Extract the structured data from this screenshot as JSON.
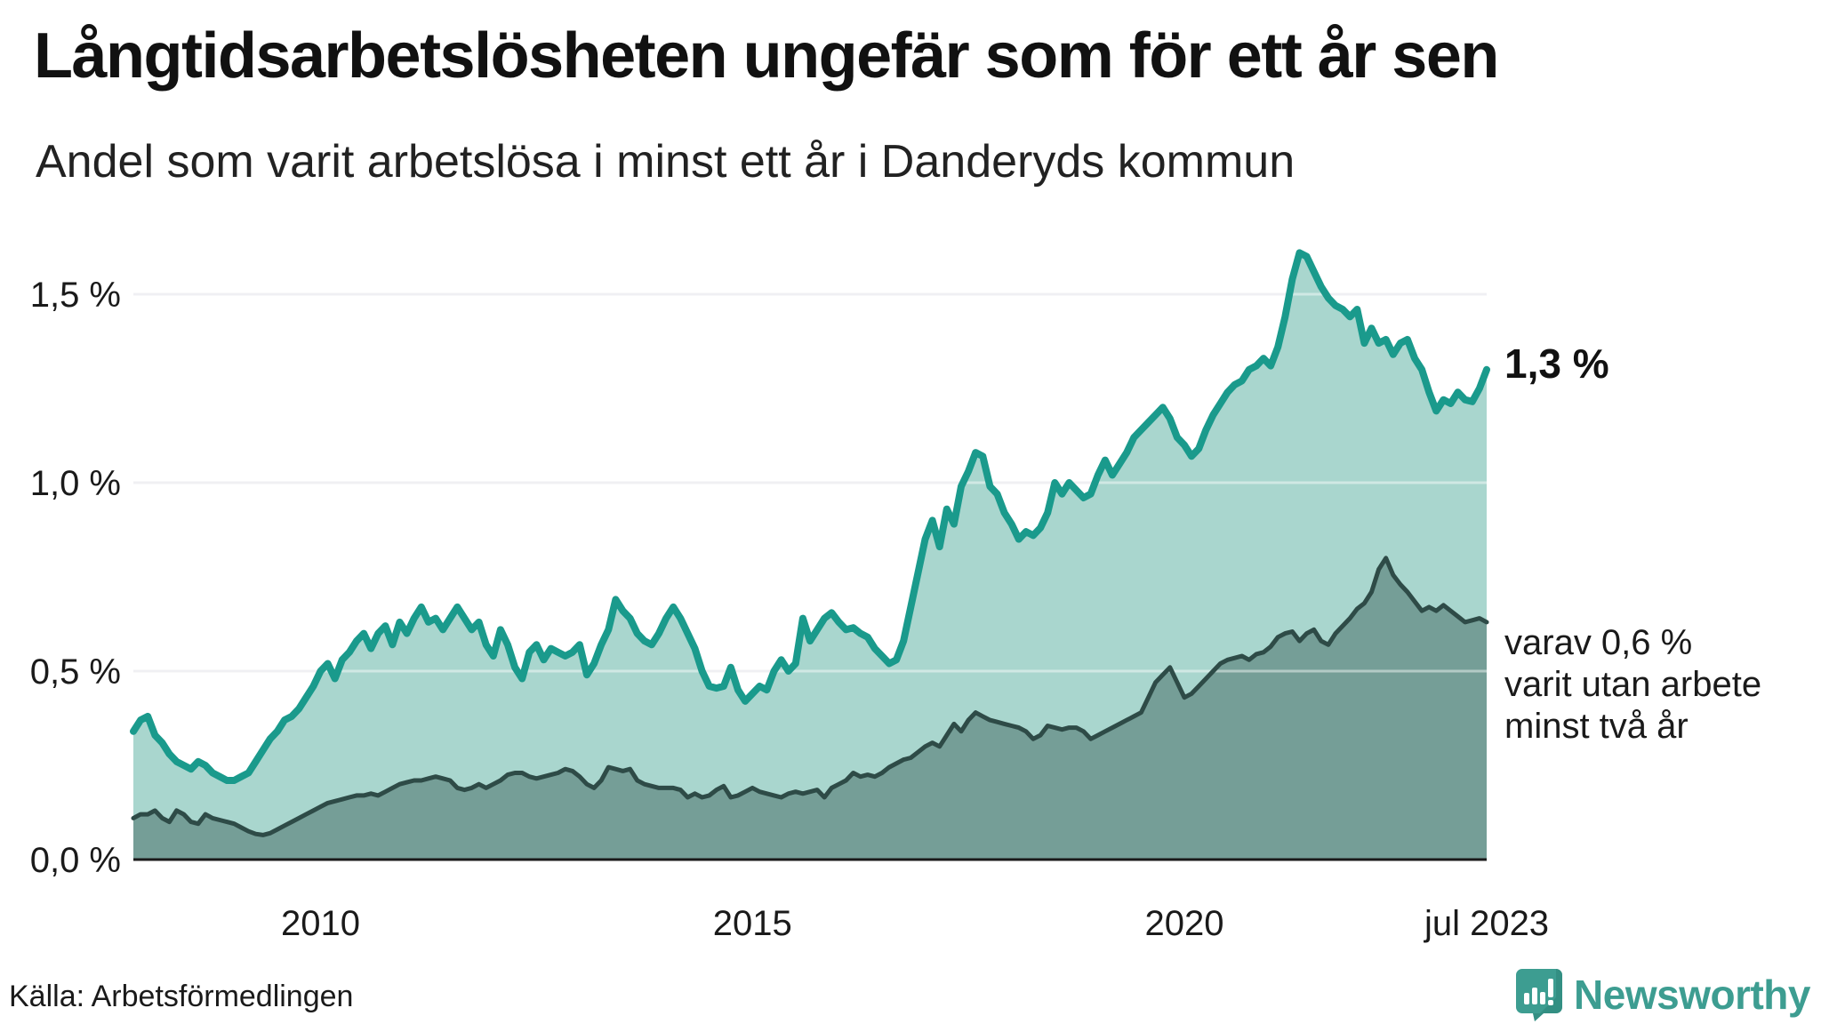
{
  "header": {
    "title": "Långtidsarbetslösheten ungefär som för ett år sen",
    "subtitle": "Andel som varit arbetslösa i minst ett år i Danderyds kommun"
  },
  "annotations": {
    "end_label_total": "1,3 %",
    "two_years_lines": [
      "varav 0,6 %",
      "varit utan arbete",
      "minst två år"
    ]
  },
  "footer": {
    "source": "Källa: Arbetsförmedlingen",
    "logo_text": "Newsworthy"
  },
  "colors": {
    "line_total": "#1a9a8c",
    "fill_total": "#a9d6ce",
    "line_two_years": "#2e4b47",
    "fill_two_years": "#759e97",
    "grid": "#e4e4e9",
    "grid_overlay": "rgba(255,255,255,0.45)",
    "axis": "#1a1a1a",
    "tick_text": "#1a1a1a",
    "logo_teal": "#3d9d91",
    "logo_teal_dark": "#2b8478"
  },
  "chart_data": {
    "type": "area",
    "title": "Andel som varit arbetslösa i minst ett år i Danderyds kommun",
    "x_start": "2007-11",
    "x_end": "2023-07",
    "frequency": "monthly",
    "ylim": [
      0,
      1.7
    ],
    "grid": "horizontal",
    "legend_position": "end-of-line-annotations",
    "y_ticks": [
      {
        "label": "0,0 %",
        "value": 0.0
      },
      {
        "label": "0,5 %",
        "value": 0.5
      },
      {
        "label": "1,0 %",
        "value": 1.0
      },
      {
        "label": "1,5 %",
        "value": 1.5
      }
    ],
    "x_ticks": [
      {
        "label": "2010",
        "month_index": 26
      },
      {
        "label": "2015",
        "month_index": 86
      },
      {
        "label": "2020",
        "month_index": 146
      },
      {
        "label": "jul 2023",
        "month_index": 188
      }
    ],
    "series": [
      {
        "name": "Arbetslösa minst ett år",
        "end_value_label": "1,3 %",
        "values": [
          0.34,
          0.37,
          0.38,
          0.33,
          0.31,
          0.28,
          0.26,
          0.25,
          0.24,
          0.26,
          0.25,
          0.23,
          0.22,
          0.21,
          0.21,
          0.22,
          0.23,
          0.26,
          0.29,
          0.32,
          0.34,
          0.37,
          0.38,
          0.4,
          0.43,
          0.46,
          0.5,
          0.52,
          0.48,
          0.53,
          0.55,
          0.58,
          0.6,
          0.56,
          0.6,
          0.62,
          0.57,
          0.63,
          0.6,
          0.64,
          0.67,
          0.63,
          0.64,
          0.61,
          0.64,
          0.67,
          0.64,
          0.61,
          0.63,
          0.57,
          0.54,
          0.61,
          0.57,
          0.51,
          0.48,
          0.55,
          0.57,
          0.53,
          0.56,
          0.55,
          0.54,
          0.55,
          0.57,
          0.49,
          0.52,
          0.57,
          0.61,
          0.69,
          0.66,
          0.64,
          0.6,
          0.58,
          0.57,
          0.6,
          0.64,
          0.67,
          0.64,
          0.6,
          0.56,
          0.5,
          0.46,
          0.455,
          0.46,
          0.51,
          0.45,
          0.42,
          0.44,
          0.46,
          0.45,
          0.5,
          0.53,
          0.5,
          0.52,
          0.64,
          0.58,
          0.61,
          0.64,
          0.655,
          0.63,
          0.61,
          0.615,
          0.6,
          0.59,
          0.56,
          0.54,
          0.52,
          0.53,
          0.58,
          0.67,
          0.76,
          0.85,
          0.9,
          0.83,
          0.93,
          0.89,
          0.99,
          1.03,
          1.08,
          1.07,
          0.99,
          0.97,
          0.92,
          0.89,
          0.85,
          0.87,
          0.86,
          0.88,
          0.92,
          1.0,
          0.97,
          1.0,
          0.98,
          0.96,
          0.97,
          1.02,
          1.06,
          1.02,
          1.05,
          1.08,
          1.12,
          1.14,
          1.16,
          1.18,
          1.2,
          1.17,
          1.12,
          1.1,
          1.07,
          1.09,
          1.14,
          1.18,
          1.21,
          1.24,
          1.26,
          1.27,
          1.3,
          1.31,
          1.33,
          1.31,
          1.36,
          1.44,
          1.54,
          1.61,
          1.6,
          1.56,
          1.52,
          1.49,
          1.47,
          1.46,
          1.44,
          1.46,
          1.37,
          1.41,
          1.37,
          1.38,
          1.34,
          1.37,
          1.38,
          1.33,
          1.3,
          1.24,
          1.19,
          1.22,
          1.21,
          1.24,
          1.22,
          1.215,
          1.25,
          1.3
        ]
      },
      {
        "name": "varav utan arbete minst två år",
        "end_value_label": "0,6 %",
        "values": [
          0.11,
          0.12,
          0.12,
          0.13,
          0.11,
          0.1,
          0.13,
          0.12,
          0.1,
          0.095,
          0.12,
          0.11,
          0.105,
          0.1,
          0.095,
          0.085,
          0.075,
          0.068,
          0.065,
          0.07,
          0.08,
          0.09,
          0.1,
          0.11,
          0.12,
          0.13,
          0.14,
          0.15,
          0.155,
          0.16,
          0.165,
          0.17,
          0.17,
          0.175,
          0.17,
          0.18,
          0.19,
          0.2,
          0.205,
          0.21,
          0.21,
          0.215,
          0.22,
          0.215,
          0.21,
          0.19,
          0.185,
          0.19,
          0.2,
          0.19,
          0.2,
          0.21,
          0.225,
          0.23,
          0.23,
          0.22,
          0.215,
          0.22,
          0.225,
          0.23,
          0.24,
          0.235,
          0.22,
          0.2,
          0.19,
          0.21,
          0.245,
          0.24,
          0.235,
          0.24,
          0.21,
          0.2,
          0.195,
          0.19,
          0.19,
          0.19,
          0.185,
          0.165,
          0.175,
          0.165,
          0.17,
          0.185,
          0.195,
          0.165,
          0.17,
          0.18,
          0.19,
          0.18,
          0.175,
          0.17,
          0.165,
          0.175,
          0.18,
          0.175,
          0.18,
          0.185,
          0.165,
          0.19,
          0.2,
          0.21,
          0.23,
          0.22,
          0.225,
          0.22,
          0.23,
          0.245,
          0.255,
          0.265,
          0.27,
          0.285,
          0.3,
          0.31,
          0.3,
          0.33,
          0.36,
          0.34,
          0.37,
          0.39,
          0.38,
          0.37,
          0.365,
          0.36,
          0.355,
          0.35,
          0.34,
          0.32,
          0.33,
          0.355,
          0.35,
          0.345,
          0.35,
          0.35,
          0.34,
          0.32,
          0.33,
          0.34,
          0.35,
          0.36,
          0.37,
          0.38,
          0.39,
          0.43,
          0.47,
          0.49,
          0.51,
          0.47,
          0.43,
          0.44,
          0.46,
          0.48,
          0.5,
          0.52,
          0.53,
          0.535,
          0.54,
          0.53,
          0.545,
          0.55,
          0.565,
          0.59,
          0.6,
          0.605,
          0.58,
          0.6,
          0.61,
          0.58,
          0.57,
          0.6,
          0.62,
          0.64,
          0.665,
          0.68,
          0.71,
          0.77,
          0.8,
          0.755,
          0.73,
          0.71,
          0.685,
          0.66,
          0.67,
          0.66,
          0.675,
          0.66,
          0.645,
          0.63,
          0.635,
          0.64,
          0.63
        ]
      }
    ]
  }
}
